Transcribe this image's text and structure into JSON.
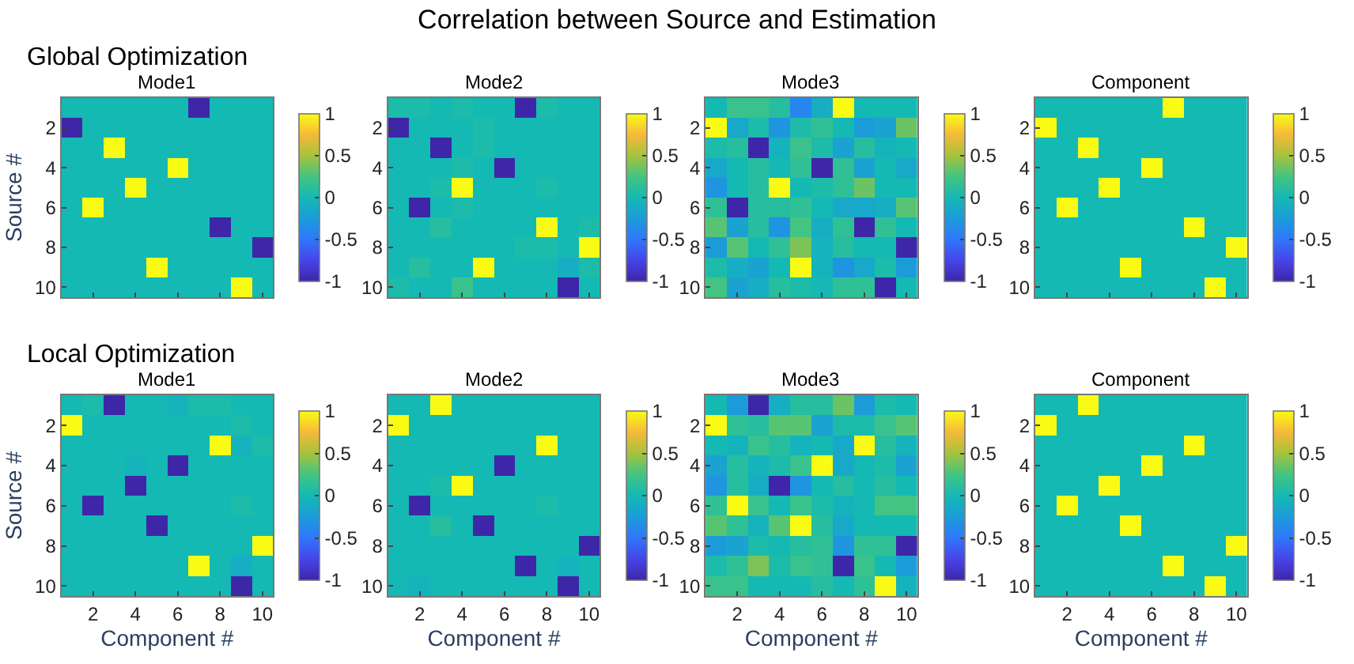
{
  "chart_data": [
    {
      "type": "other",
      "title": "Correlation between Source and Estimation"
    },
    {
      "type": "heatmap",
      "title": "Mode1",
      "subtitle": "Global Optimization",
      "ylabel": "Source #",
      "tick_labels": "y",
      "categories": [
        null,
        "2",
        null,
        "4",
        null,
        "6",
        null,
        "8",
        null,
        "10"
      ],
      "y_categories": [
        null,
        "2",
        null,
        "4",
        null,
        "6",
        null,
        "8",
        null,
        "10"
      ],
      "clim": [
        -1,
        1
      ],
      "cticks": [
        -1,
        -0.5,
        0,
        0.5,
        1
      ],
      "cells": [
        [
          0,
          0,
          0,
          0,
          0,
          0,
          -1,
          0,
          0,
          0
        ],
        [
          -1,
          0,
          0,
          0,
          0,
          0,
          0,
          0,
          0,
          0
        ],
        [
          0,
          0,
          1,
          0,
          0,
          0,
          0,
          0,
          0,
          0
        ],
        [
          0,
          0,
          0,
          0,
          0,
          1,
          0,
          0,
          0,
          0
        ],
        [
          0,
          0,
          0,
          1,
          0,
          0,
          0,
          0,
          0,
          0
        ],
        [
          0,
          1,
          0,
          0,
          0,
          0,
          0,
          0,
          0,
          0
        ],
        [
          0,
          0,
          0,
          0,
          0,
          0,
          0,
          -1,
          0,
          0
        ],
        [
          0,
          0,
          0,
          0,
          0,
          0,
          0,
          0,
          0,
          -1
        ],
        [
          0,
          0,
          0,
          0,
          1,
          0,
          0,
          0,
          0,
          0
        ],
        [
          0,
          0,
          0,
          0,
          0,
          0,
          0,
          0,
          1,
          0
        ]
      ]
    },
    {
      "type": "heatmap",
      "title": "Mode2",
      "tick_labels": "y",
      "categories": [
        null,
        "2",
        null,
        "4",
        null,
        "6",
        null,
        "8",
        null,
        "10"
      ],
      "y_categories": [
        null,
        "2",
        null,
        "4",
        null,
        "6",
        null,
        "8",
        null,
        "10"
      ],
      "clim": [
        -1,
        1
      ],
      "cticks": [
        -1,
        -0.5,
        0,
        0.5,
        1
      ],
      "cells": [
        [
          0.05,
          0.05,
          0,
          0.05,
          0,
          0,
          -1,
          0.05,
          0,
          0
        ],
        [
          -1,
          0,
          0,
          0,
          0.05,
          0,
          0,
          0,
          0,
          0
        ],
        [
          0,
          0,
          -1,
          0,
          0.05,
          0,
          0,
          0,
          0,
          0
        ],
        [
          0,
          0,
          0,
          0.05,
          0,
          -1,
          0,
          0,
          0,
          0
        ],
        [
          0,
          0,
          0.05,
          1,
          0,
          0,
          0,
          0.05,
          0,
          0
        ],
        [
          0,
          -1,
          0,
          0.05,
          0,
          0,
          0,
          0,
          0,
          0
        ],
        [
          0,
          0,
          0.1,
          0,
          0,
          0,
          0,
          1,
          0,
          0.05
        ],
        [
          0,
          0,
          0,
          0,
          0,
          0,
          0.05,
          0.05,
          0,
          1
        ],
        [
          0,
          0.1,
          0,
          0,
          1,
          0,
          0,
          0,
          -0.1,
          0.05
        ],
        [
          0.05,
          0,
          0,
          0.2,
          0,
          0,
          0,
          0,
          -1,
          0
        ]
      ]
    },
    {
      "type": "heatmap",
      "title": "Mode3",
      "tick_labels": "y",
      "categories": [
        null,
        "2",
        null,
        "4",
        null,
        "6",
        null,
        "8",
        null,
        "10"
      ],
      "y_categories": [
        null,
        "2",
        null,
        "4",
        null,
        "6",
        null,
        "8",
        null,
        "10"
      ],
      "clim": [
        -1,
        1
      ],
      "cticks": [
        -1,
        -0.5,
        0,
        0.5,
        1
      ],
      "cells": [
        [
          0,
          0.2,
          0.2,
          0.1,
          -0.4,
          -0.1,
          1,
          0,
          0,
          0
        ],
        [
          1,
          -0.15,
          0.05,
          -0.3,
          0.05,
          0.15,
          0,
          -0.25,
          -0.2,
          0.35
        ],
        [
          0.05,
          0.1,
          -1,
          -0.05,
          0.2,
          0.05,
          -0.2,
          0.1,
          -0.05,
          0
        ],
        [
          -0.15,
          0,
          0.1,
          0,
          0.15,
          -1,
          0.15,
          -0.2,
          0,
          -0.15
        ],
        [
          -0.3,
          0,
          0.1,
          1,
          0,
          0.05,
          0.15,
          0.35,
          0,
          0
        ],
        [
          0.15,
          -1,
          0.1,
          0.1,
          0.15,
          0,
          -0.15,
          -0.15,
          -0.1,
          0.3
        ],
        [
          0.3,
          -0.2,
          0.1,
          -0.3,
          0.25,
          -0.1,
          0.15,
          -1,
          0.15,
          0
        ],
        [
          -0.25,
          0.3,
          0,
          0.15,
          0.4,
          -0.05,
          0.1,
          0,
          0,
          -1
        ],
        [
          0.05,
          -0.1,
          -0.2,
          0,
          1,
          -0.05,
          -0.3,
          -0.15,
          0.05,
          -0.25
        ],
        [
          0.25,
          -0.2,
          -0.1,
          0.1,
          0.05,
          0,
          0.15,
          0.15,
          -1,
          0
        ]
      ]
    },
    {
      "type": "heatmap",
      "title": "Component",
      "tick_labels": "y",
      "categories": [
        null,
        "2",
        null,
        "4",
        null,
        "6",
        null,
        "8",
        null,
        "10"
      ],
      "y_categories": [
        null,
        "2",
        null,
        "4",
        null,
        "6",
        null,
        "8",
        null,
        "10"
      ],
      "clim": [
        -1,
        1
      ],
      "cticks": [
        -1,
        -0.5,
        0,
        0.5,
        1
      ],
      "cells": [
        [
          0,
          0,
          0,
          0,
          0,
          0,
          1,
          0,
          0,
          0
        ],
        [
          1,
          0,
          0,
          0,
          0,
          0,
          0,
          0,
          0,
          0
        ],
        [
          0,
          0,
          1,
          0,
          0,
          0,
          0,
          0,
          0,
          0
        ],
        [
          0,
          0,
          0,
          0,
          0,
          1,
          0,
          0,
          0,
          0
        ],
        [
          0,
          0,
          0,
          1,
          0,
          0,
          0,
          0,
          0,
          0
        ],
        [
          0,
          1,
          0,
          0,
          0,
          0,
          0,
          0,
          0,
          0
        ],
        [
          0,
          0,
          0,
          0,
          0,
          0,
          0,
          1,
          0,
          0
        ],
        [
          0,
          0,
          0,
          0,
          0,
          0,
          0,
          0,
          0,
          1
        ],
        [
          0,
          0,
          0,
          0,
          1,
          0,
          0,
          0,
          0,
          0
        ],
        [
          0,
          0,
          0,
          0,
          0,
          0,
          0,
          0,
          1,
          0
        ]
      ]
    },
    {
      "type": "heatmap",
      "title": "Mode1",
      "subtitle": "Local Optimization",
      "xlabel": "Component #",
      "ylabel": "Source #",
      "categories": [
        null,
        "2",
        null,
        "4",
        null,
        "6",
        null,
        "8",
        null,
        "10"
      ],
      "y_categories": [
        null,
        "2",
        null,
        "4",
        null,
        "6",
        null,
        "8",
        null,
        "10"
      ],
      "clim": [
        -1,
        1
      ],
      "cticks": [
        -1,
        -0.5,
        0,
        0.5,
        1
      ],
      "cells": [
        [
          0,
          0.05,
          -1,
          0,
          0,
          -0.05,
          0.05,
          0.05,
          0,
          0
        ],
        [
          1,
          0,
          0,
          0,
          0,
          0,
          0,
          0,
          0.05,
          0
        ],
        [
          0,
          0,
          0,
          0,
          0,
          0,
          0,
          1,
          -0.05,
          0.05
        ],
        [
          0,
          0,
          0,
          -0.05,
          0,
          -1,
          0,
          0,
          0,
          0
        ],
        [
          0,
          0,
          0,
          -1,
          0,
          0,
          0,
          0,
          0,
          0
        ],
        [
          0,
          -1,
          0,
          0,
          0,
          0,
          0,
          0,
          0.05,
          0
        ],
        [
          0,
          0,
          0,
          0,
          -1,
          0,
          0,
          0,
          0,
          0
        ],
        [
          0,
          0,
          0,
          0,
          0,
          0,
          0,
          0,
          0,
          1
        ],
        [
          0,
          0,
          0,
          0,
          0,
          0,
          1,
          0,
          -0.1,
          0
        ],
        [
          0,
          0,
          0,
          0,
          0,
          0,
          0,
          0,
          -1,
          0
        ]
      ]
    },
    {
      "type": "heatmap",
      "title": "Mode2",
      "xlabel": "Component #",
      "categories": [
        null,
        "2",
        null,
        "4",
        null,
        "6",
        null,
        "8",
        null,
        "10"
      ],
      "y_categories": [
        null,
        "2",
        null,
        "4",
        null,
        "6",
        null,
        "8",
        null,
        "10"
      ],
      "clim": [
        -1,
        1
      ],
      "cticks": [
        -1,
        -0.5,
        0,
        0.5,
        1
      ],
      "cells": [
        [
          0,
          0,
          1,
          0,
          0,
          0,
          0,
          0,
          0,
          0
        ],
        [
          1,
          0,
          0,
          0,
          0,
          0,
          0,
          0,
          0,
          0
        ],
        [
          0,
          0,
          0,
          0,
          0,
          0,
          0,
          1,
          0,
          0
        ],
        [
          0,
          0,
          0,
          0,
          0,
          -1,
          0,
          0,
          0,
          0
        ],
        [
          0,
          0,
          0.05,
          1,
          0,
          0,
          0,
          0,
          0,
          0
        ],
        [
          0,
          -1,
          0,
          0,
          0,
          0,
          0,
          0.05,
          0,
          0
        ],
        [
          0,
          0,
          0.1,
          0,
          -1,
          0,
          0,
          0,
          0,
          0
        ],
        [
          0,
          0,
          0,
          0,
          0,
          0,
          0,
          0,
          0,
          -1
        ],
        [
          0,
          0,
          0,
          0,
          0,
          0,
          -1,
          0,
          -0.05,
          0
        ],
        [
          0,
          -0.05,
          0,
          0,
          0,
          0,
          0,
          0,
          -1,
          0
        ]
      ]
    },
    {
      "type": "heatmap",
      "title": "Mode3",
      "xlabel": "Component #",
      "categories": [
        null,
        "2",
        null,
        "4",
        null,
        "6",
        null,
        "8",
        null,
        "10"
      ],
      "y_categories": [
        null,
        "2",
        null,
        "4",
        null,
        "6",
        null,
        "8",
        null,
        "10"
      ],
      "clim": [
        -1,
        1
      ],
      "cticks": [
        -1,
        -0.5,
        0,
        0.5,
        1
      ],
      "cells": [
        [
          0,
          -0.25,
          -1,
          -0.1,
          0.1,
          0.1,
          0.35,
          -0.25,
          0.05,
          0
        ],
        [
          1,
          0.15,
          0.1,
          0.3,
          0.3,
          -0.2,
          0.05,
          0.05,
          0.2,
          0.3
        ],
        [
          0,
          -0.05,
          0.2,
          0.1,
          -0.05,
          0,
          -0.15,
          1,
          0.1,
          -0.05
        ],
        [
          -0.2,
          0.1,
          -0.05,
          0.05,
          0.2,
          1,
          -0.15,
          0,
          0.05,
          -0.2
        ],
        [
          -0.3,
          0.1,
          -0.1,
          -1,
          -0.3,
          0,
          0.1,
          0,
          0.1,
          0
        ],
        [
          0.15,
          1,
          0.2,
          0,
          0.2,
          0.05,
          -0.05,
          0,
          0.25,
          0.25
        ],
        [
          0.3,
          0.15,
          -0.05,
          0.3,
          1,
          0.1,
          -0.15,
          0,
          0,
          0
        ],
        [
          -0.25,
          -0.2,
          0.05,
          0,
          0.1,
          0.15,
          -0.3,
          0.15,
          0.15,
          -1
        ],
        [
          0.05,
          0.15,
          0.4,
          0.05,
          0.2,
          0.15,
          -1,
          0.2,
          0,
          -0.25
        ],
        [
          0.2,
          0.2,
          0,
          0,
          0,
          0.1,
          0,
          0.15,
          1,
          -0.05
        ]
      ]
    },
    {
      "type": "heatmap",
      "title": "Component",
      "xlabel": "Component #",
      "categories": [
        null,
        "2",
        null,
        "4",
        null,
        "6",
        null,
        "8",
        null,
        "10"
      ],
      "y_categories": [
        null,
        "2",
        null,
        "4",
        null,
        "6",
        null,
        "8",
        null,
        "10"
      ],
      "clim": [
        -1,
        1
      ],
      "cticks": [
        -1,
        -0.5,
        0,
        0.5,
        1
      ],
      "cells": [
        [
          0,
          0,
          1,
          0,
          0,
          0,
          0,
          0,
          0,
          0
        ],
        [
          1,
          0,
          0,
          0,
          0,
          0,
          0,
          0,
          0,
          0
        ],
        [
          0,
          0,
          0,
          0,
          0,
          0,
          0,
          1,
          0,
          0
        ],
        [
          0,
          0,
          0,
          0,
          0,
          1,
          0,
          0,
          0,
          0
        ],
        [
          0,
          0,
          0,
          1,
          0,
          0,
          0,
          0,
          0,
          0
        ],
        [
          0,
          1,
          0,
          0,
          0,
          0,
          0,
          0,
          0,
          0
        ],
        [
          0,
          0,
          0,
          0,
          1,
          0,
          0,
          0,
          0,
          0
        ],
        [
          0,
          0,
          0,
          0,
          0,
          0,
          0,
          0,
          0,
          1
        ],
        [
          0,
          0,
          0,
          0,
          0,
          0,
          1,
          0,
          0,
          0
        ],
        [
          0,
          0,
          0,
          0,
          0,
          0,
          0,
          0,
          1,
          0
        ]
      ]
    }
  ]
}
